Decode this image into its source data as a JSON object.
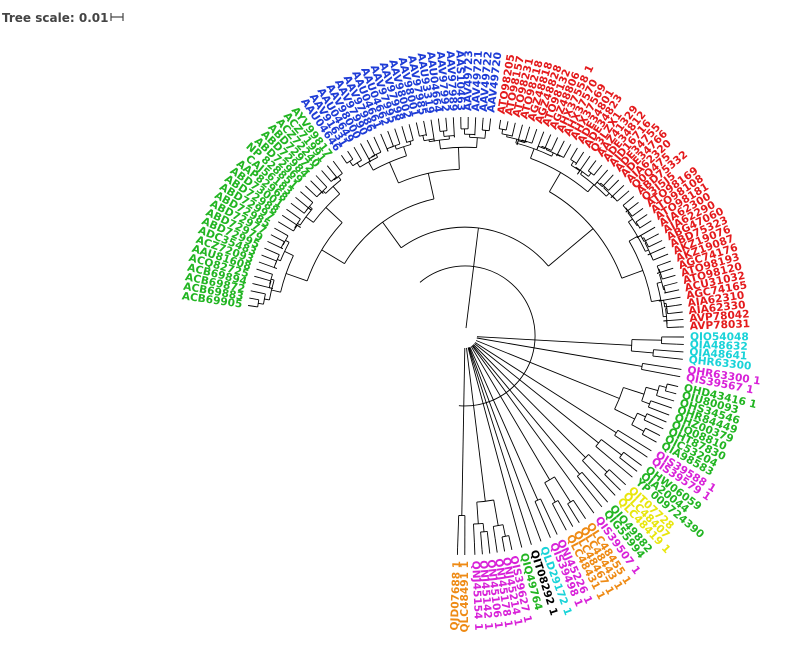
{
  "tree_scale": {
    "label": "Tree scale:",
    "value": "0.01"
  },
  "colors": {
    "green": "#22b522",
    "blue": "#1e3cd6",
    "red": "#e41a1c",
    "magenta": "#d822d8",
    "orange": "#ee8a14",
    "cyan": "#19d3d8",
    "yellow": "#e8e60c",
    "black": "#000000",
    "branch": "#000000"
  },
  "clades": [
    {
      "color": "green",
      "labels": [
        "ACB69905",
        "ACB69883",
        "ACB69872",
        "ACB69894",
        "ACQ82725",
        "AAU81608",
        "ACZ72093",
        "ADC35483",
        "ABD72995",
        "ABD72979",
        "ABD72977",
        "ABD72985",
        "ABD72997",
        "ABD72988",
        "ABD73001",
        "AAP82968",
        "CAJ56183",
        "NP 828851",
        "ABD72969",
        "ABD72984",
        "ABD72972",
        "ACZ72240",
        "ACZ71991",
        "AYV99817"
      ]
    },
    {
      "color": "blue",
      "labels": [
        "AAU04646",
        "AAV91631",
        "AAU04649",
        "AAV98000",
        "AAV97990",
        "AAV97986",
        "AAU04661",
        "AAU04662",
        "AAV97995",
        "AAV97998",
        "AAV98002",
        "AAV98001",
        "AAV97985",
        "AAU93319",
        "AAU04664",
        "AAV97992",
        "AAV97989",
        "AAS10463",
        "AAV49723",
        "AAV49721",
        "AAV49722",
        "AAV49720"
      ]
    },
    {
      "color": "red",
      "labels": [
        "ATO98205",
        "ATO98157",
        "ATO98231",
        "ATO98218",
        "AGZ48818",
        "AGZ48828",
        "ATO98132",
        "AGZ48806",
        "AHX37558 1",
        "AHX37570",
        "AHX37569",
        "ADE34801",
        "ADE34823",
        "Q3LZX1",
        "AAZ41329",
        "ADE34812",
        "AID16716",
        "ADE34755",
        "ADE34766",
        "AIA62320",
        "Q0Q475",
        "ABD75332",
        "Q3I5J5",
        "ATO98169",
        "ATO98108",
        "ATO98181",
        "AIA62300",
        "AIA62290",
        "ABG47060",
        "ABD75323",
        "AKZ19076",
        "AKZ19087",
        "AGC74176",
        "ATO98193",
        "ATO98120",
        "ACU31032",
        "AGC74165",
        "AIA62310",
        "AIA62330",
        "AVP78042",
        "AVP78031"
      ]
    },
    {
      "color": "cyan",
      "labels": [
        "QIO54048",
        "QIA48632",
        "QIA48641",
        "QHR63300"
      ]
    },
    {
      "color": "magenta",
      "labels": [
        "QHR63300 1",
        "QIS39567 1"
      ]
    },
    {
      "color": "green",
      "labels": [
        "QHD43416 1",
        "QIU80093",
        "QHS34546",
        "QHR84449",
        "QHZ00379",
        "QIQ08810",
        "QHT87830",
        "QIC53204",
        "QIA98583"
      ]
    },
    {
      "color": "magenta",
      "labels": [
        "QIS39588 1",
        "QIS39579 1"
      ]
    },
    {
      "color": "green",
      "labels": [
        "QHW06059",
        "QIA20044",
        "YP 009724390"
      ]
    },
    {
      "color": "yellow",
      "labels": [
        "QIT07728",
        "QLC48407",
        "QLC48419 1"
      ]
    },
    {
      "color": "green",
      "labels": [
        "QIQ49882",
        "QIG55994"
      ]
    },
    {
      "color": "magenta",
      "labels": [
        "QIS39507 1"
      ]
    },
    {
      "color": "orange",
      "labels": [
        "QLC48455 1",
        "QLC48443 1",
        "QLC48467 1",
        "QLC48431 1"
      ]
    },
    {
      "color": "magenta",
      "labels": [
        "QNJ45226 1",
        "QIS39498 1"
      ]
    },
    {
      "color": "cyan",
      "labels": [
        "QLD29172 1"
      ]
    },
    {
      "color": "black",
      "labels": [
        "QIT08292 1"
      ]
    },
    {
      "color": "green",
      "labels": [
        "QIQ49764"
      ]
    },
    {
      "color": "magenta",
      "labels": [
        "QIS39627 1",
        "QNJ45214 1",
        "QNJ45178 1",
        "QNJ45106 1",
        "QNJ45142 1",
        "QNJ45154 1"
      ]
    },
    {
      "color": "orange",
      "labels": [
        "QLC48491 1",
        "QJD07688 1"
      ]
    }
  ]
}
